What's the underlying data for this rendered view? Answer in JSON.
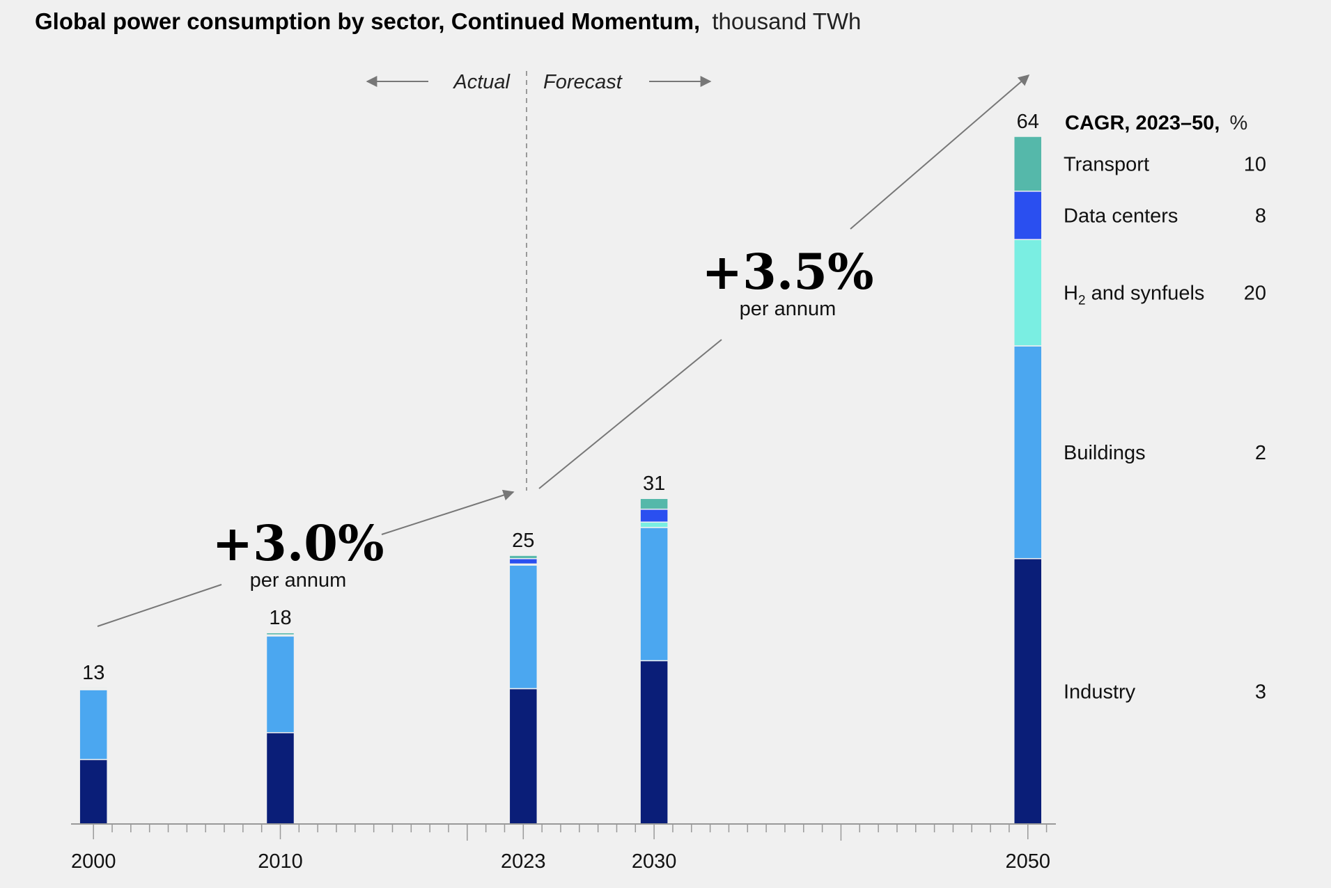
{
  "chart_data": {
    "type": "bar",
    "stacked": true,
    "title": "Global power consumption by sector, Continued Momentum,",
    "unit": "thousand TWh",
    "categories": [
      "2000",
      "2010",
      "2023",
      "2030",
      "2050"
    ],
    "x_positions": [
      2000,
      2010,
      2023,
      2030,
      2050
    ],
    "xlim": [
      1998.8,
      2051.5
    ],
    "ylim": [
      0,
      64
    ],
    "totals": [
      "13",
      "18",
      "25",
      "31",
      "64"
    ],
    "series": [
      {
        "name": "Industry",
        "cagr": "3",
        "color": "#0a1e78",
        "values": [
          6.0,
          8.5,
          12.6,
          15.2,
          24.7
        ]
      },
      {
        "name": "Buildings",
        "cagr": "2",
        "color": "#4ba7f0",
        "values": [
          6.5,
          9.0,
          11.5,
          12.4,
          19.8
        ]
      },
      {
        "name": "H2 and synfuels",
        "cagr": "20",
        "color": "#7aeee2",
        "values": [
          0.1,
          0.1,
          0.1,
          0.5,
          9.9
        ]
      },
      {
        "name": "Data centers",
        "cagr": "8",
        "color": "#2a4ff0",
        "values": [
          0.0,
          0.0,
          0.5,
          1.2,
          4.5
        ]
      },
      {
        "name": "Transport",
        "cagr": "10",
        "color": "#55b8aa",
        "values": [
          0.1,
          0.2,
          0.3,
          1.0,
          5.1
        ]
      }
    ],
    "legend_title": "CAGR, 2023–50,",
    "legend_unit": "%",
    "h2_prefix": "H",
    "h2_subscript": "2",
    "h2_suffix": " and synfuels",
    "section_labels": {
      "actual": "Actual",
      "forecast": "Forecast"
    },
    "annotations": [
      {
        "value": "+3.0%",
        "label": "per annum"
      },
      {
        "value": "+3.5%",
        "label": "per annum"
      }
    ]
  }
}
